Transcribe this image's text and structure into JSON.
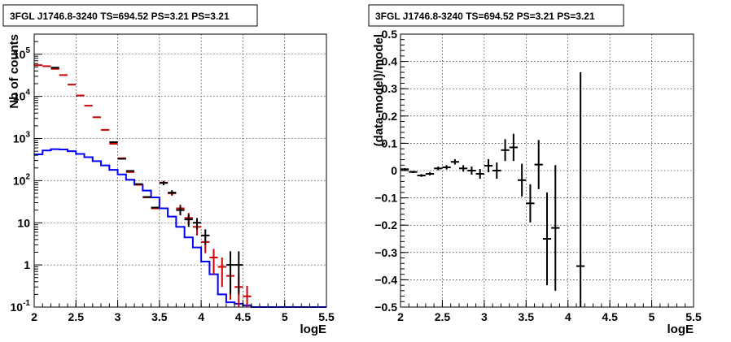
{
  "charts": [
    {
      "type": "line",
      "title": "3FGL J1746.8-3240 TS=694.52 PS=3.21 PS=3.21",
      "xlabel": "logE",
      "ylabel": "Nb of counts",
      "xlim": [
        2,
        5.5
      ],
      "ylim": [
        0.1,
        300000
      ],
      "ylog": true,
      "grid": true,
      "x_ticks": [
        {
          "v": 2,
          "label": "2"
        },
        {
          "v": 2.5,
          "label": "2.5"
        },
        {
          "v": 3,
          "label": "3"
        },
        {
          "v": 3.5,
          "label": "3.5"
        },
        {
          "v": 4,
          "label": "4"
        },
        {
          "v": 4.5,
          "label": "4.5"
        },
        {
          "v": 5,
          "label": "5"
        },
        {
          "v": 5.5,
          "label": "5.5"
        }
      ],
      "y_ticks": [
        {
          "v": 0.1,
          "base": "10",
          "exp": "-1"
        },
        {
          "v": 1,
          "base": "1",
          "exp": ""
        },
        {
          "v": 10,
          "base": "10",
          "exp": ""
        },
        {
          "v": 100,
          "base": "10",
          "exp": "2"
        },
        {
          "v": 1000,
          "base": "10",
          "exp": "3"
        },
        {
          "v": 10000,
          "base": "10",
          "exp": "4"
        },
        {
          "v": 100000,
          "base": "10",
          "exp": "5"
        }
      ],
      "series": [
        {
          "kind": "step",
          "color": "#0000ff",
          "edges": [
            2.0,
            2.1,
            2.2,
            2.3,
            2.4,
            2.5,
            2.6,
            2.7,
            2.8,
            2.9,
            3.0,
            3.1,
            3.2,
            3.3,
            3.4,
            3.5,
            3.6,
            3.7,
            3.8,
            3.9,
            4.0,
            4.1,
            4.2,
            4.3,
            4.4,
            4.5,
            4.6,
            4.7,
            5.5
          ],
          "values": [
            420,
            520,
            560,
            550,
            500,
            430,
            360,
            290,
            230,
            180,
            140,
            105,
            80,
            58,
            40,
            22,
            14,
            8,
            4.5,
            2.6,
            1.2,
            0.6,
            0.2,
            0.13,
            0.12,
            0.11,
            0.1,
            0.1
          ]
        },
        {
          "kind": "errorbar",
          "color": "#cc0000",
          "x": [
            2.05,
            2.15,
            2.25,
            2.35,
            2.45,
            2.55,
            2.65,
            2.75,
            2.85,
            2.95,
            3.05,
            3.15,
            3.25,
            3.35,
            3.45,
            3.55,
            3.65,
            3.75,
            3.85,
            3.95,
            4.05,
            4.15,
            4.25,
            4.35,
            4.45,
            4.55
          ],
          "y": [
            55000,
            52000,
            45000,
            32000,
            19000,
            10500,
            6000,
            3200,
            1600,
            750,
            340,
            160,
            80,
            40,
            22,
            90,
            50,
            22,
            13,
            8,
            3.5,
            1.5,
            0.9,
            0.55,
            0.3,
            0.18
          ],
          "xerr": 0.05,
          "yerr_lo": [
            0,
            0,
            0,
            0,
            0,
            0,
            0,
            0,
            0,
            0,
            0,
            0,
            0,
            0,
            0,
            8,
            6,
            5,
            4,
            3,
            1.6,
            0.9,
            0.6,
            0.4,
            0.25,
            0.14
          ],
          "yerr_hi": [
            0,
            0,
            0,
            0,
            0,
            0,
            0,
            0,
            0,
            0,
            0,
            0,
            0,
            0,
            0,
            8,
            6,
            5,
            4,
            3,
            1.6,
            0.9,
            0.6,
            0.4,
            0.25,
            0.14
          ]
        },
        {
          "kind": "errorbar",
          "color": "#000000",
          "x": [
            2.25,
            2.95,
            3.05,
            3.15,
            3.25,
            3.35,
            3.45,
            3.55,
            3.65,
            3.75,
            3.85,
            3.95,
            4.05,
            4.35,
            4.45
          ],
          "y": [
            48000,
            820,
            330,
            170,
            83,
            41,
            23,
            88,
            52,
            20,
            12,
            10,
            5,
            1,
            1
          ],
          "xerr": 0.05,
          "yerr_lo": [
            0,
            0,
            0,
            0,
            0,
            0,
            0,
            10,
            7,
            5,
            4,
            3,
            2,
            0.8,
            0.8
          ],
          "yerr_hi": [
            0,
            0,
            0,
            0,
            0,
            0,
            0,
            10,
            7,
            5,
            4,
            3,
            2,
            1.1,
            1.1
          ]
        }
      ]
    },
    {
      "type": "scatter",
      "title": "3FGL J1746.8-3240 TS=694.52 PS=3.21 PS=3.21",
      "xlabel": "logE",
      "ylabel": "(data-model)/model",
      "xlim": [
        2,
        5.5
      ],
      "ylim": [
        -0.5,
        0.5
      ],
      "ylog": false,
      "grid": true,
      "x_ticks": [
        {
          "v": 2,
          "label": "2"
        },
        {
          "v": 2.5,
          "label": "2.5"
        },
        {
          "v": 3,
          "label": "3"
        },
        {
          "v": 3.5,
          "label": "3.5"
        },
        {
          "v": 4,
          "label": "4"
        },
        {
          "v": 4.5,
          "label": "4.5"
        },
        {
          "v": 5,
          "label": "5"
        },
        {
          "v": 5.5,
          "label": "5.5"
        }
      ],
      "y_ticks": [
        {
          "v": -0.5,
          "label": "−0.5"
        },
        {
          "v": -0.4,
          "label": "−0.4"
        },
        {
          "v": -0.3,
          "label": "−0.3"
        },
        {
          "v": -0.2,
          "label": "−0.2"
        },
        {
          "v": -0.1,
          "label": "−0.1"
        },
        {
          "v": 0,
          "label": "0"
        },
        {
          "v": 0.1,
          "label": "0.1"
        },
        {
          "v": 0.2,
          "label": "0.2"
        },
        {
          "v": 0.3,
          "label": "0.3"
        },
        {
          "v": 0.4,
          "label": "0.4"
        },
        {
          "v": 0.5,
          "label": "0.5"
        }
      ],
      "series": [
        {
          "kind": "errorbar",
          "color": "#000000",
          "x": [
            2.05,
            2.15,
            2.25,
            2.35,
            2.45,
            2.55,
            2.65,
            2.75,
            2.85,
            2.95,
            3.05,
            3.15,
            3.25,
            3.35,
            3.45,
            3.55,
            3.65,
            3.75,
            3.85,
            4.15
          ],
          "y": [
            0.005,
            -0.005,
            -0.018,
            -0.012,
            0.008,
            0.012,
            0.032,
            0.008,
            0.0,
            -0.012,
            0.018,
            0.0,
            0.075,
            0.085,
            -0.035,
            -0.12,
            0.022,
            -0.25,
            -0.21,
            -0.35
          ],
          "xerr": 0.05,
          "yerr": [
            0.004,
            0.004,
            0.005,
            0.006,
            0.007,
            0.008,
            0.01,
            0.012,
            0.015,
            0.018,
            0.024,
            0.03,
            0.04,
            0.05,
            0.06,
            0.07,
            0.09,
            0.17,
            0.23,
            0.71
          ]
        }
      ]
    }
  ]
}
